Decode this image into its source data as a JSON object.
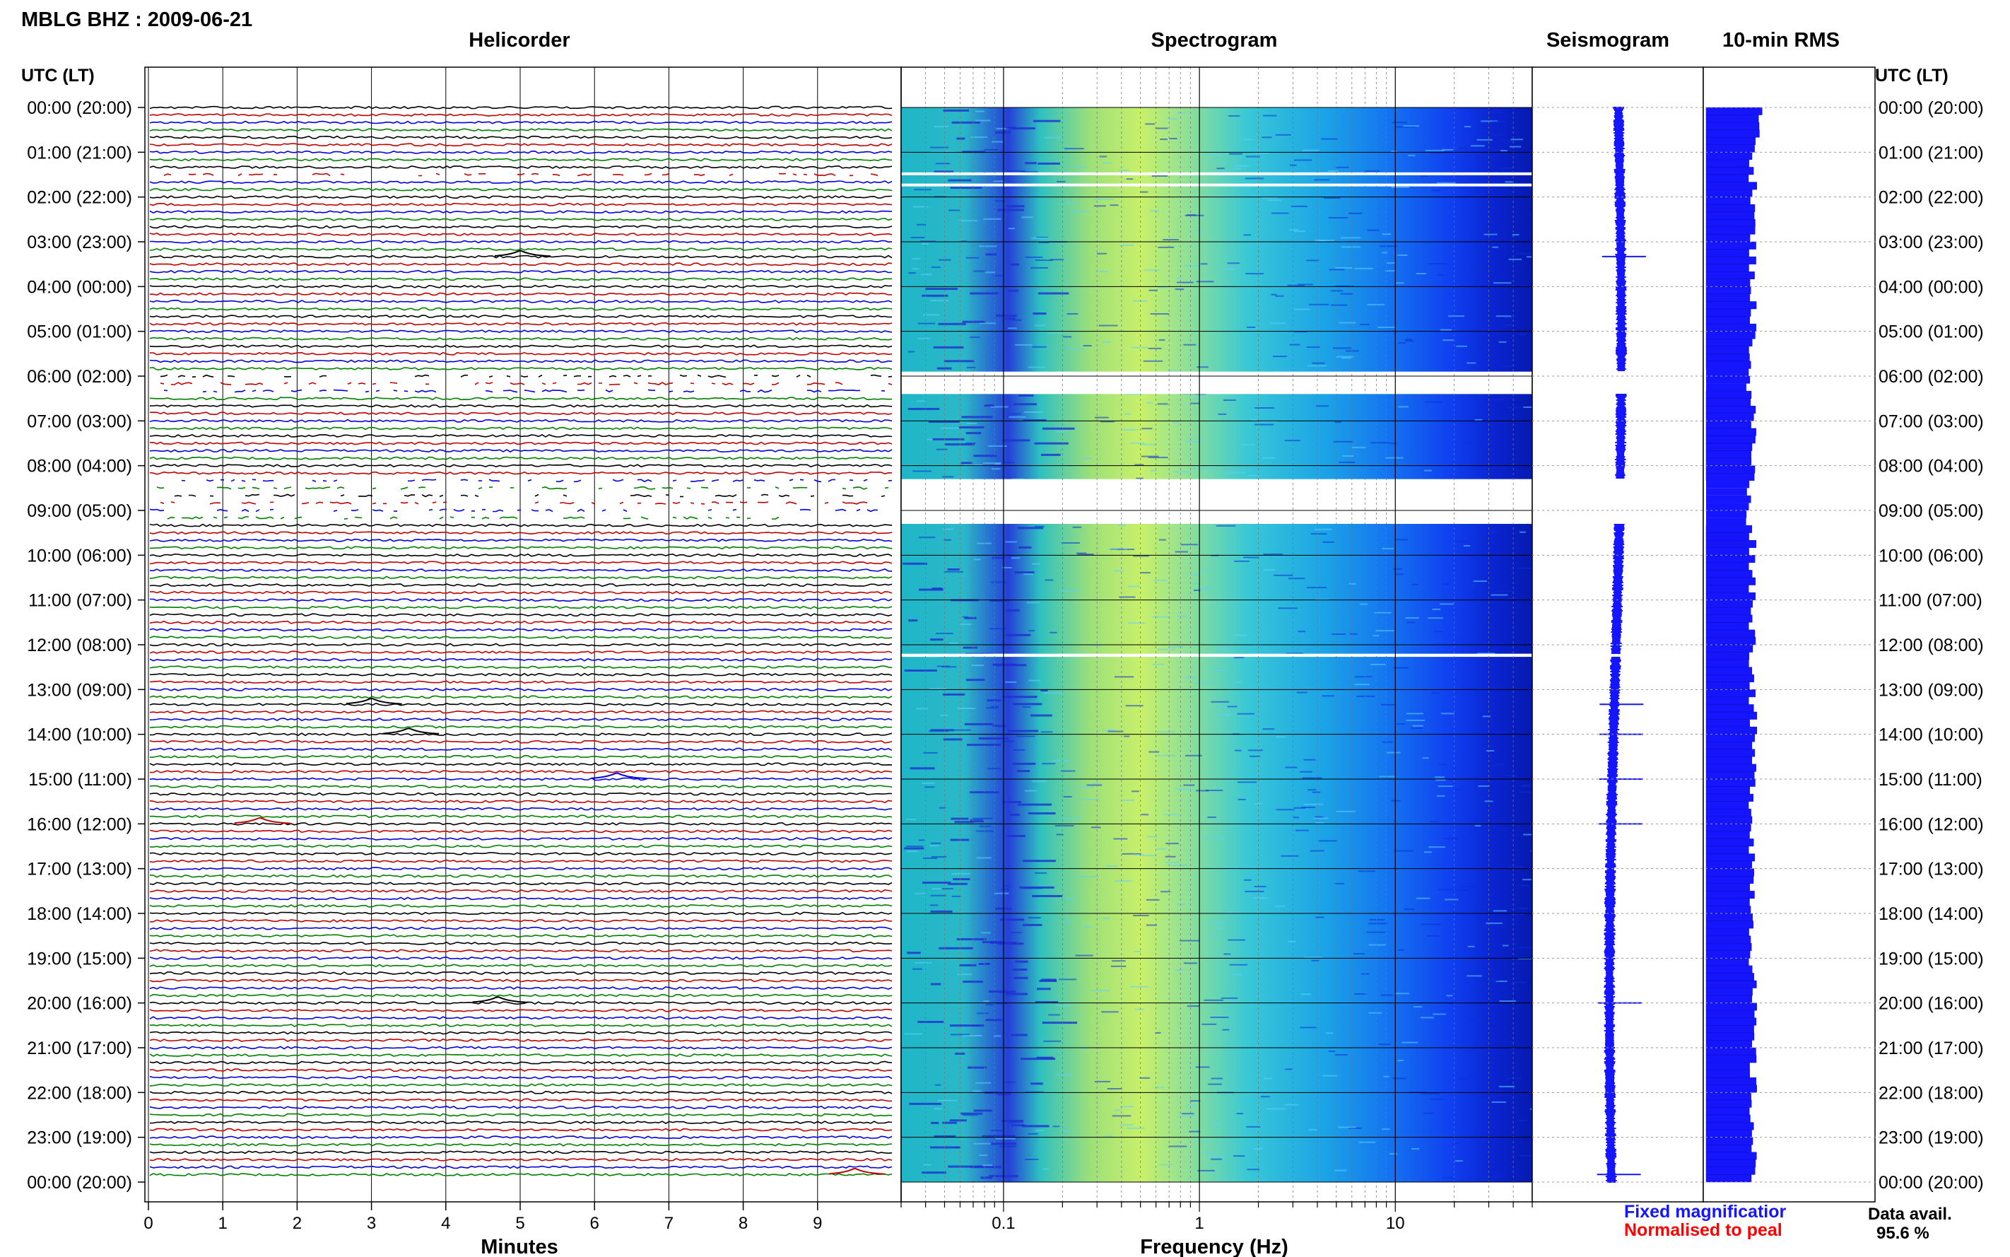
{
  "header": {
    "title": "MBLG BHZ : 2009-06-21"
  },
  "panels": {
    "helicorder": "Helicorder",
    "spectrogram": "Spectrogram",
    "seismogram": "Seismogram",
    "rms": "10-min RMS"
  },
  "axes": {
    "time_label_left": "UTC (LT)",
    "time_label_right": "UTC (LT)",
    "time_ticks": [
      "00:00 (20:00)",
      "01:00 (21:00)",
      "02:00 (22:00)",
      "03:00 (23:00)",
      "04:00 (00:00)",
      "05:00 (01:00)",
      "06:00 (02:00)",
      "07:00 (03:00)",
      "08:00 (04:00)",
      "09:00 (05:00)",
      "10:00 (06:00)",
      "11:00 (07:00)",
      "12:00 (08:00)",
      "13:00 (09:00)",
      "14:00 (10:00)",
      "15:00 (11:00)",
      "16:00 (12:00)",
      "17:00 (13:00)",
      "18:00 (14:00)",
      "19:00 (15:00)",
      "20:00 (16:00)",
      "21:00 (17:00)",
      "22:00 (18:00)",
      "23:00 (19:00)",
      "00:00 (20:00)"
    ],
    "minutes_label": "Minutes",
    "minutes_ticks": [
      "0",
      "1",
      "2",
      "3",
      "4",
      "5",
      "6",
      "7",
      "8",
      "9"
    ],
    "frequency_label": "Frequency (Hz)",
    "frequency_ticks": [
      "0.1",
      "1",
      "10"
    ]
  },
  "legend": {
    "fixed": "Fixed magnificatior",
    "fixed_color": "#1515ff",
    "normalised": "Normalised to peal",
    "normalised_color": "#ff0000"
  },
  "availability": {
    "label": "Data avail.",
    "value": "95.6 %"
  },
  "chart_data": {
    "type": "helicorder-spectrogram",
    "station": "MBLG BHZ",
    "date": "2009-06-21",
    "trace_colors": [
      "#000000",
      "#c00000",
      "#0000e0",
      "#008000"
    ],
    "trace_lines_per_hour": 6,
    "hours": 24,
    "minutes_range": [
      0,
      10
    ],
    "frequency_range_hz": [
      0.03,
      50
    ],
    "frequency_scale": "log",
    "data_gaps_utc_hours": [
      [
        1.45,
        1.5
      ],
      [
        1.7,
        1.75
      ],
      [
        5.9,
        6.4
      ],
      [
        8.3,
        9.3
      ],
      [
        12.2,
        12.27
      ]
    ],
    "events": [
      {
        "utc_hour": 3.33,
        "minute": 5.0,
        "color": "black"
      },
      {
        "utc_hour": 13.33,
        "minute": 3.0,
        "color": "black"
      },
      {
        "utc_hour": 14.0,
        "minute": 3.5,
        "color": "black"
      },
      {
        "utc_hour": 15.0,
        "minute": 6.3,
        "color": "blue"
      },
      {
        "utc_hour": 16.0,
        "minute": 1.5,
        "color": "red"
      },
      {
        "utc_hour": 20.0,
        "minute": 4.7,
        "color": "black"
      },
      {
        "utc_hour": 23.83,
        "minute": 9.5,
        "color": "red"
      }
    ],
    "availability_percent": 95.6
  }
}
